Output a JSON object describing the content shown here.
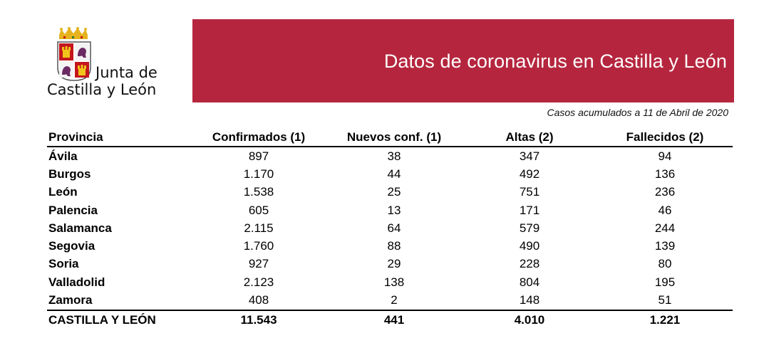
{
  "logo": {
    "line1": "Junta de",
    "line2": "Castilla y León",
    "colors": {
      "crown": "#e6b31e",
      "red": "#c4161c",
      "purple": "#6b2a63",
      "gold": "#f0c419"
    }
  },
  "banner": {
    "title": "Datos de coronavirus en Castilla y León",
    "color": "#b5263e"
  },
  "subtitle": "Casos acumulados a 11 de Abril de 2020",
  "table": {
    "headers": [
      "Provincia",
      "Confirmados (1)",
      "Nuevos conf. (1)",
      "Altas (2)",
      "Fallecidos (2)"
    ],
    "rows": [
      [
        "Ávila",
        "897",
        "38",
        "347",
        "94"
      ],
      [
        "Burgos",
        "1.170",
        "44",
        "492",
        "136"
      ],
      [
        "León",
        "1.538",
        "25",
        "751",
        "236"
      ],
      [
        "Palencia",
        "605",
        "13",
        "171",
        "46"
      ],
      [
        "Salamanca",
        "2.115",
        "64",
        "579",
        "244"
      ],
      [
        "Segovia",
        "1.760",
        "88",
        "490",
        "139"
      ],
      [
        "Soria",
        "927",
        "29",
        "228",
        "80"
      ],
      [
        "Valladolid",
        "2.123",
        "138",
        "804",
        "195"
      ],
      [
        "Zamora",
        "408",
        "2",
        "148",
        "51"
      ]
    ],
    "total": [
      "CASTILLA Y LEÓN",
      "11.543",
      "441",
      "4.010",
      "1.221"
    ]
  }
}
